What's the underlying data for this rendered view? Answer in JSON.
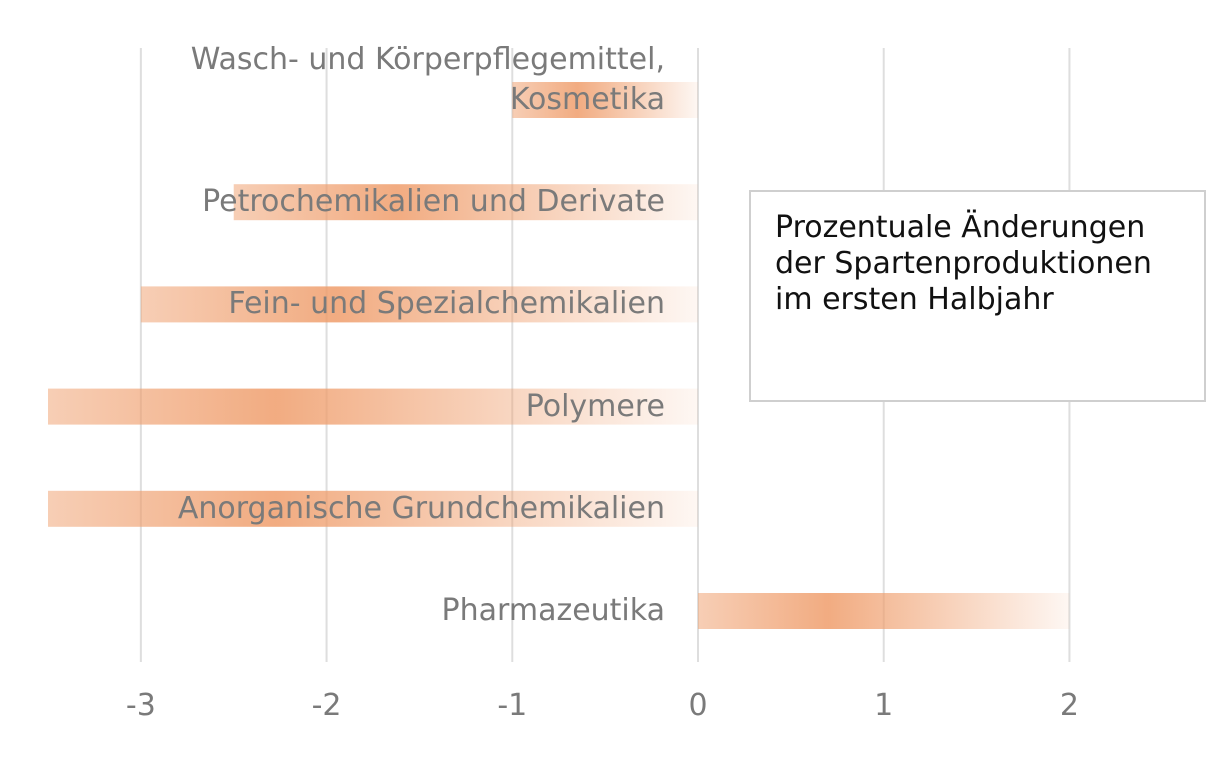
{
  "chart_data": {
    "type": "barh",
    "title": "Prozentuale Änderungen der Spartenproduktionen im ersten Halbjahr",
    "categories": [
      "Wasch- und Körperpflegemittel,\nKosmetika",
      "Petrochemikalien und Derivate",
      "Fein- und Spezialchemikalien",
      "Polymere",
      "Anorganische Grundchemikalien",
      "Pharmazeutika"
    ],
    "values": [
      -1.0,
      -2.5,
      -3.0,
      -3.5,
      -3.5,
      2.0
    ],
    "color": "#ef9d6b",
    "xlim": [
      -3.5,
      2.8
    ],
    "xticks": [
      -3,
      -2,
      -1,
      0,
      1,
      2
    ],
    "grid": true
  }
}
